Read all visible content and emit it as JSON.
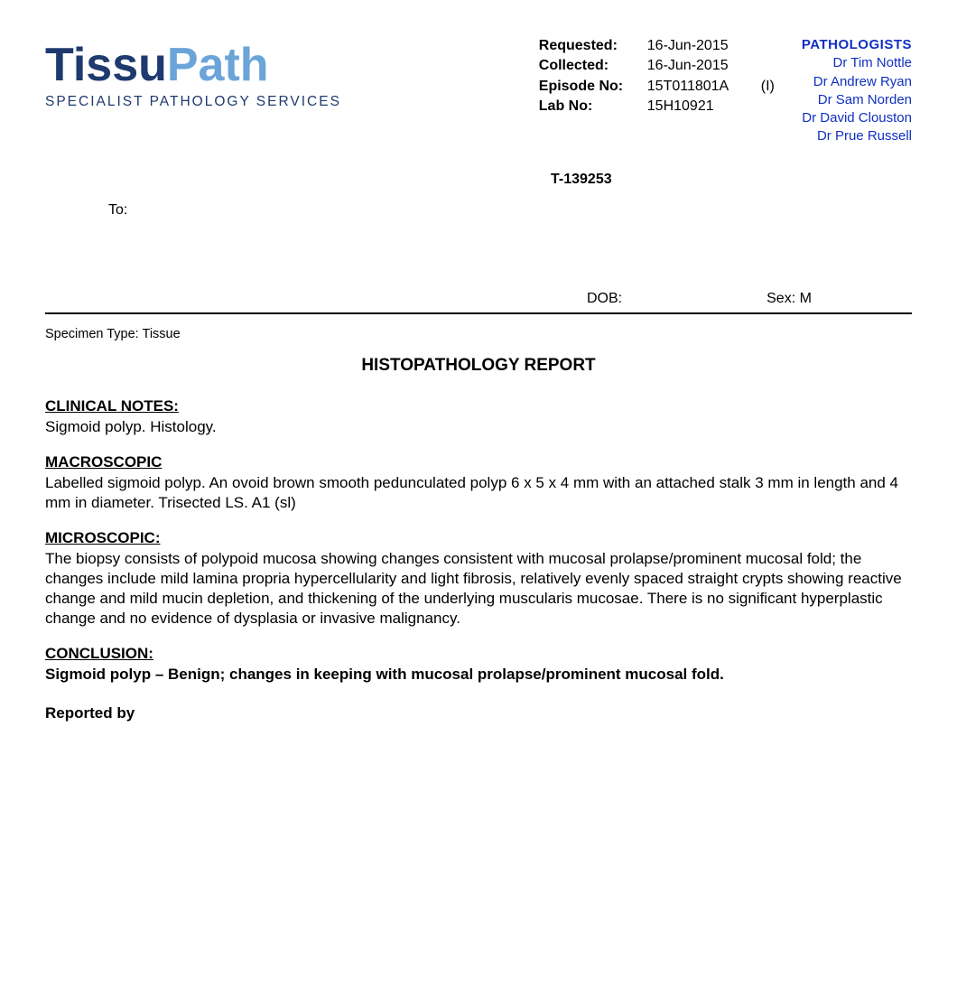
{
  "logo": {
    "word1": "Tissu",
    "word2": "Path",
    "subtitle": "SPECIALIST PATHOLOGY SERVICES",
    "color_dark": "#1e3a6e",
    "color_light": "#6ba4d9"
  },
  "meta": {
    "requested_label": "Requested:",
    "requested_value": "16-Jun-2015",
    "collected_label": "Collected:",
    "collected_value": "16-Jun-2015",
    "episode_label": "Episode No:",
    "episode_value": "15T011801A",
    "episode_suffix": "(I)",
    "lab_label": "Lab No:",
    "lab_value": "15H10921"
  },
  "pathologists": {
    "heading": "PATHOLOGISTS",
    "names": [
      "Dr Tim Nottle",
      "Dr Andrew Ryan",
      "Dr Sam Norden",
      "Dr David Clouston",
      "Dr Prue Russell"
    ],
    "color": "#1030c0"
  },
  "t_number": "T-139253",
  "to_label": "To:",
  "dob_label": "DOB:",
  "sex_label": "Sex:",
  "sex_value": "M",
  "specimen_type_label": "Specimen Type:",
  "specimen_type_value": "Tissue",
  "report_title": "HISTOPATHOLOGY REPORT",
  "sections": {
    "clinical": {
      "heading": "CLINICAL NOTES:",
      "text": "Sigmoid polyp. Histology."
    },
    "macroscopic": {
      "heading": "MACROSCOPIC",
      "text": "Labelled sigmoid polyp. An ovoid brown smooth pedunculated polyp 6 x 5 x 4 mm with an attached stalk 3 mm in length and 4 mm in diameter. Trisected LS. A1 (sl)"
    },
    "microscopic": {
      "heading": "MICROSCOPIC:",
      "text": "The biopsy consists of polypoid mucosa showing changes consistent with mucosal prolapse/prominent mucosal fold; the changes include mild lamina propria hypercellularity and light fibrosis, relatively evenly spaced straight crypts showing reactive change and mild mucin depletion, and thickening of the underlying muscularis mucosae. There is no significant hyperplastic change and no evidence of dysplasia or invasive malignancy."
    },
    "conclusion": {
      "heading": "CONCLUSION:",
      "text": "Sigmoid polyp – Benign; changes in keeping with mucosal prolapse/prominent mucosal fold."
    }
  },
  "reported_by_label": "Reported by"
}
